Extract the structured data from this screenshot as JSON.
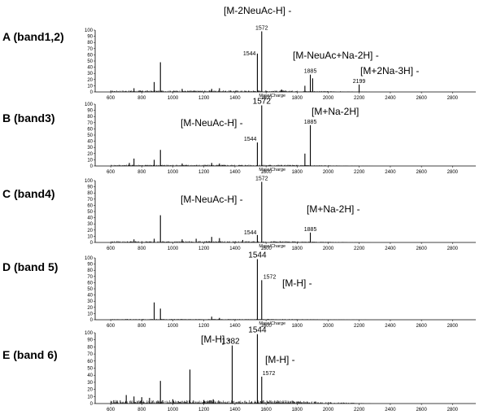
{
  "chart_data": [
    {
      "type": "line",
      "panel_label": "A (band1,2)",
      "xlabel": "Mass/Charge",
      "xlim": [
        500,
        2950
      ],
      "ylim": [
        0,
        100
      ],
      "xticks": [
        "600",
        "800",
        "1000",
        "1200",
        "1400",
        "1600",
        "1800",
        "2000",
        "2200",
        "2400",
        "2600",
        "2800"
      ],
      "yticks": [
        "0",
        "10",
        "20",
        "30",
        "40",
        "50",
        "60",
        "70",
        "80",
        "90",
        "100"
      ],
      "peaks": [
        {
          "x": 1544,
          "y": 62,
          "label": "1544"
        },
        {
          "x": 1572,
          "y": 98,
          "label": "1572"
        },
        {
          "x": 1885,
          "y": 28,
          "label": "1885"
        },
        {
          "x": 2199,
          "y": 12,
          "label": "2199"
        },
        {
          "x": 920,
          "y": 48
        },
        {
          "x": 880,
          "y": 16
        },
        {
          "x": 750,
          "y": 6
        },
        {
          "x": 1060,
          "y": 5
        },
        {
          "x": 1250,
          "y": 5
        },
        {
          "x": 1300,
          "y": 6
        },
        {
          "x": 1850,
          "y": 10
        },
        {
          "x": 1900,
          "y": 22
        },
        {
          "x": 1700,
          "y": 4
        }
      ],
      "annotations": [
        "[M-2NeuAc-H]  -",
        "[M-NeuAc+Na-2H]  -",
        "[M+2Na-3H]  -"
      ]
    },
    {
      "type": "line",
      "panel_label": "B (band3)",
      "xlabel": "Mass/Charge",
      "xlim": [
        500,
        2950
      ],
      "ylim": [
        0,
        100
      ],
      "xticks": [
        "600",
        "800",
        "1000",
        "1200",
        "1400",
        "1600",
        "1800",
        "2000",
        "2200",
        "2400",
        "2600",
        "2800"
      ],
      "yticks": [
        "0",
        "10",
        "20",
        "30",
        "40",
        "50",
        "60",
        "70",
        "80",
        "90",
        "100"
      ],
      "peaks": [
        {
          "x": 1544,
          "y": 38,
          "label": "1544"
        },
        {
          "x": 1572,
          "y": 98,
          "label": "1572"
        },
        {
          "x": 1885,
          "y": 66,
          "label": "1885"
        },
        {
          "x": 920,
          "y": 26
        },
        {
          "x": 880,
          "y": 10
        },
        {
          "x": 750,
          "y": 12
        },
        {
          "x": 720,
          "y": 5
        },
        {
          "x": 1250,
          "y": 5
        },
        {
          "x": 1300,
          "y": 4
        },
        {
          "x": 1850,
          "y": 20
        },
        {
          "x": 1060,
          "y": 4
        }
      ],
      "annotations": [
        "[M-NeuAc-H]  -",
        "[M+Na-2H]"
      ]
    },
    {
      "type": "line",
      "panel_label": "C (band4)",
      "xlabel": "Mass/Charge",
      "xlim": [
        500,
        2950
      ],
      "ylim": [
        0,
        100
      ],
      "xticks": [
        "600",
        "800",
        "1000",
        "1200",
        "1400",
        "1600",
        "1800",
        "2000",
        "2200",
        "2400",
        "2600",
        "2800"
      ],
      "yticks": [
        "0",
        "10",
        "20",
        "30",
        "40",
        "50",
        "60",
        "70",
        "80",
        "90",
        "100"
      ],
      "peaks": [
        {
          "x": 1544,
          "y": 12,
          "label": "1544"
        },
        {
          "x": 1572,
          "y": 98,
          "label": "1572"
        },
        {
          "x": 1885,
          "y": 16,
          "label": "1885"
        },
        {
          "x": 920,
          "y": 44
        },
        {
          "x": 880,
          "y": 6
        },
        {
          "x": 750,
          "y": 5
        },
        {
          "x": 1150,
          "y": 6
        },
        {
          "x": 1250,
          "y": 9
        },
        {
          "x": 1300,
          "y": 7
        },
        {
          "x": 1060,
          "y": 5
        },
        {
          "x": 1450,
          "y": 4
        }
      ],
      "annotations": [
        "[M-NeuAc-H]  -",
        "[M+Na-2H]  -"
      ]
    },
    {
      "type": "line",
      "panel_label": "D (band 5)",
      "xlabel": "Mass/Charge",
      "xlim": [
        500,
        2950
      ],
      "ylim": [
        0,
        100
      ],
      "xticks": [
        "600",
        "800",
        "1000",
        "1200",
        "1400",
        "1600",
        "1800",
        "2000",
        "2200",
        "2400",
        "2600",
        "2800"
      ],
      "yticks": [
        "0",
        "10",
        "20",
        "30",
        "40",
        "50",
        "60",
        "70",
        "80",
        "90",
        "100"
      ],
      "peaks": [
        {
          "x": 1544,
          "y": 98,
          "label": "1544"
        },
        {
          "x": 1572,
          "y": 64,
          "label": "1572"
        },
        {
          "x": 880,
          "y": 28
        },
        {
          "x": 920,
          "y": 18
        },
        {
          "x": 1250,
          "y": 5
        },
        {
          "x": 1300,
          "y": 3
        }
      ],
      "annotations": [
        "[M-H]  -"
      ]
    },
    {
      "type": "line",
      "panel_label": "E (band 6)",
      "xlabel": "",
      "xlim": [
        500,
        2950
      ],
      "ylim": [
        0,
        100
      ],
      "xticks": [
        "600",
        "800",
        "1000",
        "1200",
        "1400",
        "1600",
        "1800",
        "2000",
        "2200",
        "2400",
        "2600",
        "2800"
      ],
      "yticks": [
        "0",
        "10",
        "20",
        "30",
        "40",
        "50",
        "60",
        "70",
        "80",
        "90",
        "100"
      ],
      "peaks": [
        {
          "x": 1382,
          "y": 82,
          "label": "1382"
        },
        {
          "x": 1544,
          "y": 98,
          "label": "1544"
        },
        {
          "x": 1572,
          "y": 38,
          "label": "1572"
        },
        {
          "x": 1110,
          "y": 48
        },
        {
          "x": 920,
          "y": 32
        },
        {
          "x": 700,
          "y": 12
        },
        {
          "x": 750,
          "y": 10
        },
        {
          "x": 800,
          "y": 9
        },
        {
          "x": 850,
          "y": 8
        },
        {
          "x": 1000,
          "y": 6
        },
        {
          "x": 1200,
          "y": 5
        },
        {
          "x": 1260,
          "y": 6
        }
      ],
      "annotations": [
        "[M-H]  -",
        "[M-H]  -"
      ]
    }
  ]
}
